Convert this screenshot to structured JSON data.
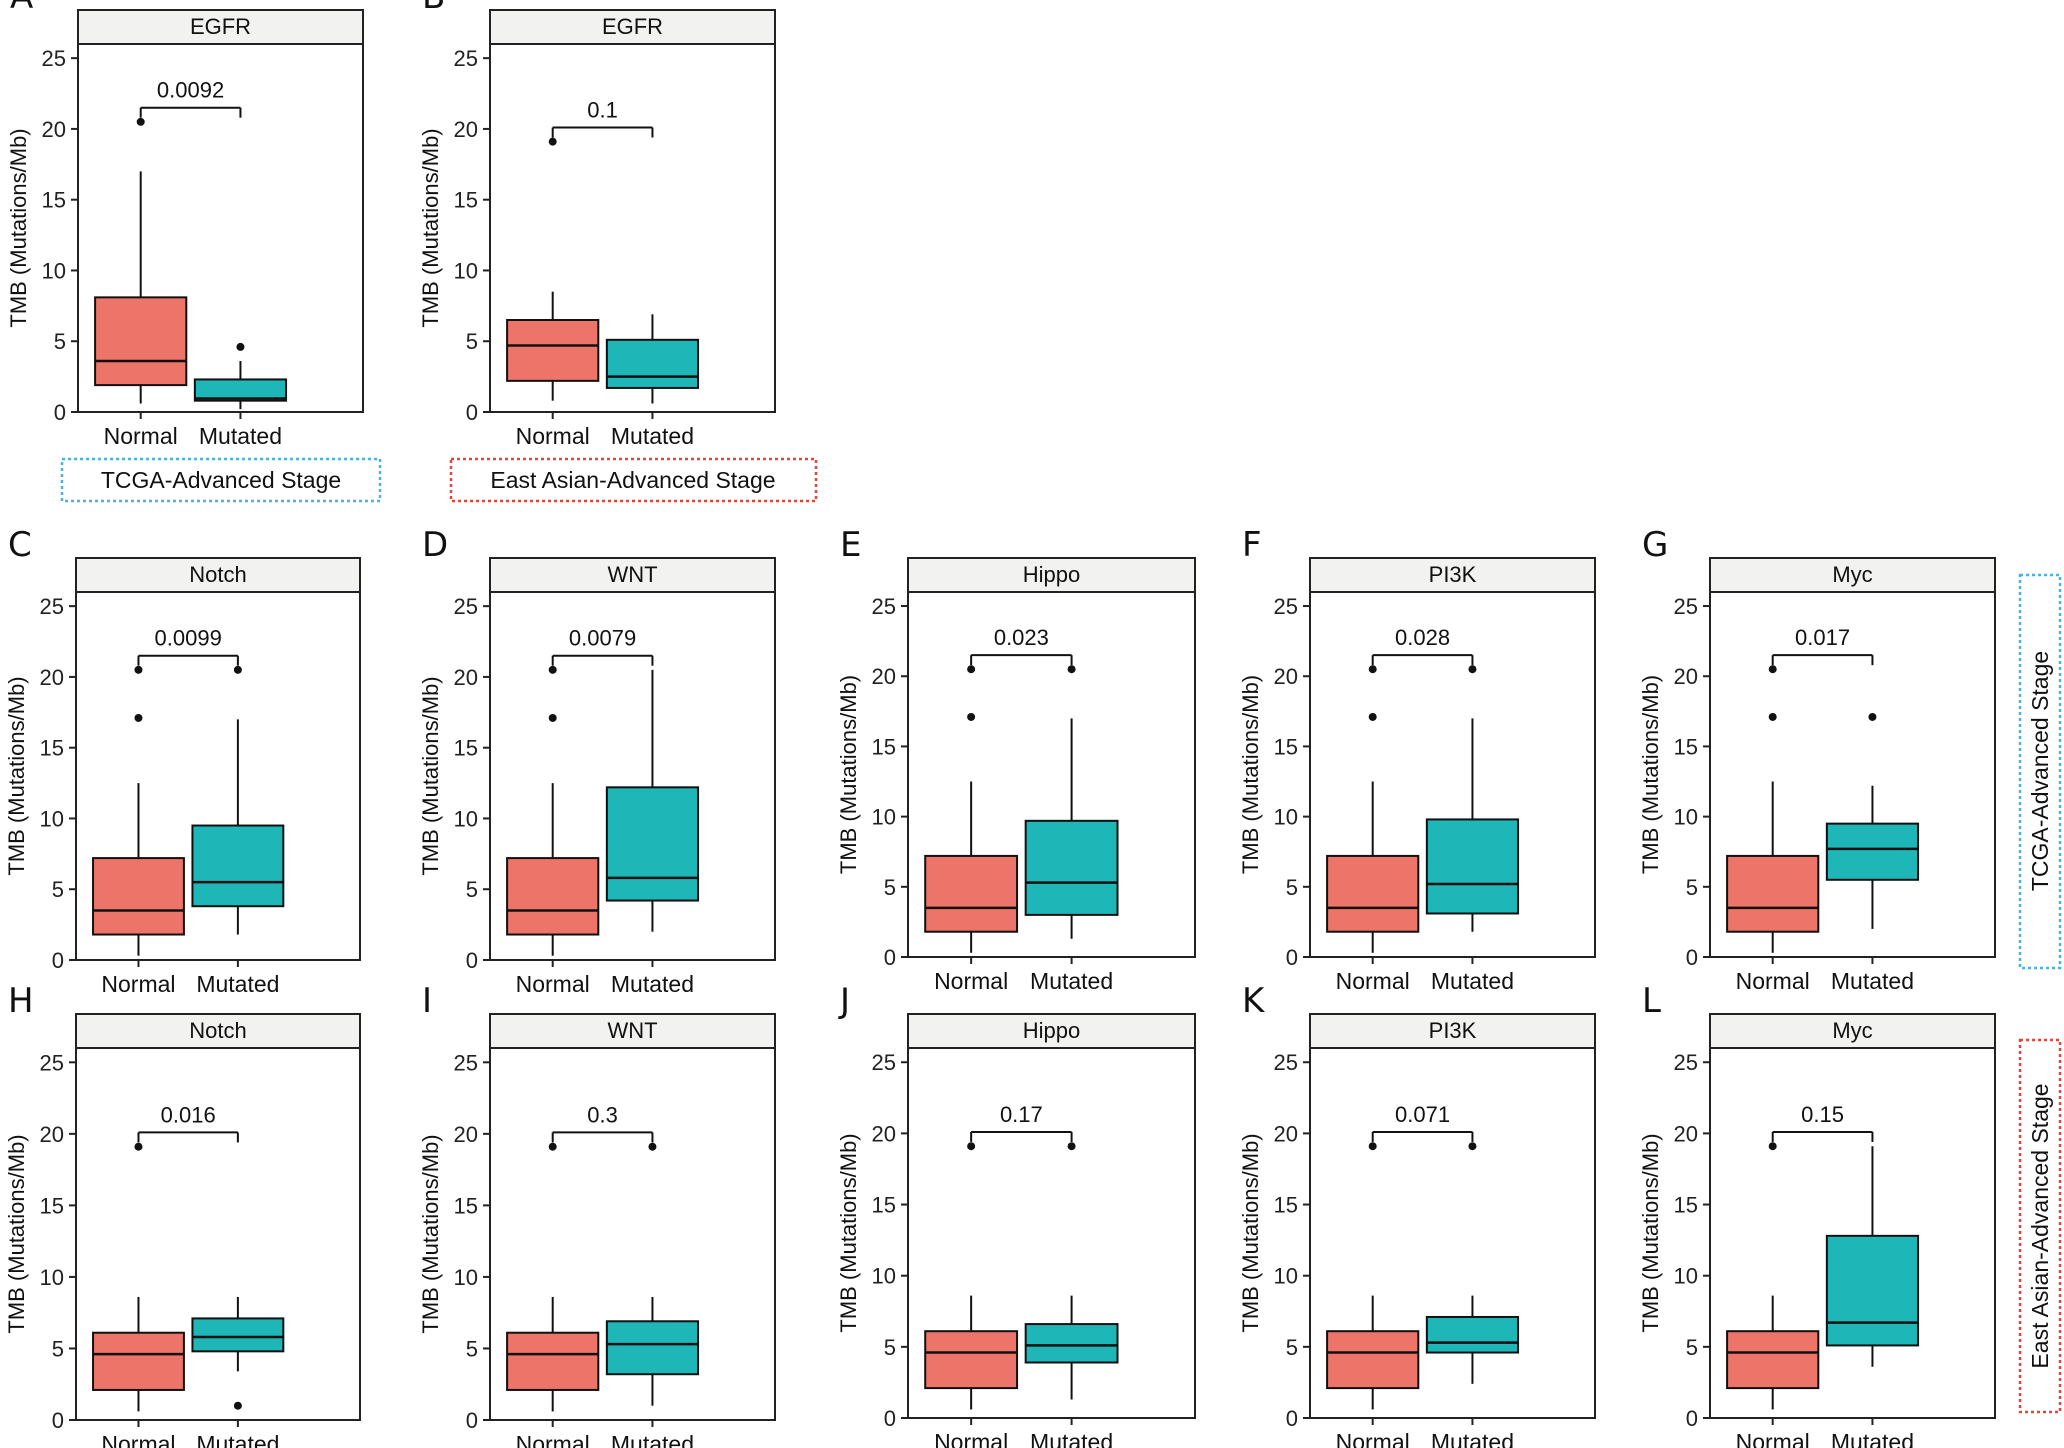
{
  "colors": {
    "normal": "#EC7468",
    "mutated": "#1FB6B8",
    "tcga_frame": "#4AB2E0",
    "eastasian_frame": "#E0453E",
    "strip_bg": "#F2F2F0"
  },
  "group_labels": {
    "tcga_bottom": "TCGA-Advanced Stage",
    "eastasian_bottom": "East Asian-Advanced Stage",
    "tcga_side": "TCGA-Advanced Stage",
    "eastasian_side": "East Asian-Advanced Stage"
  },
  "chart_data": [
    {
      "panel": "A",
      "type": "box",
      "strip": "EGFR",
      "ylabel": "TMB (Mutations/Mb)",
      "ylim": [
        0,
        26
      ],
      "yticks": [
        0,
        5,
        10,
        15,
        20,
        25
      ],
      "categories": [
        "Normal",
        "Mutated"
      ],
      "pvalue": "0.0092",
      "boxes": [
        {
          "name": "Normal",
          "min": 0.6,
          "q1": 1.9,
          "median": 3.6,
          "q3": 8.1,
          "max": 17.0,
          "outliers": [
            20.5
          ]
        },
        {
          "name": "Mutated",
          "min": 0.2,
          "q1": 0.8,
          "median": 0.95,
          "q3": 2.3,
          "max": 3.6,
          "outliers": [
            4.6
          ]
        }
      ]
    },
    {
      "panel": "B",
      "type": "box",
      "strip": "EGFR",
      "ylabel": "TMB (Mutations/Mb)",
      "ylim": [
        0,
        26
      ],
      "yticks": [
        0,
        5,
        10,
        15,
        20,
        25
      ],
      "categories": [
        "Normal",
        "Mutated"
      ],
      "pvalue": "0.1",
      "boxes": [
        {
          "name": "Normal",
          "min": 0.8,
          "q1": 2.2,
          "median": 4.7,
          "q3": 6.5,
          "max": 8.5,
          "outliers": [
            19.1
          ]
        },
        {
          "name": "Mutated",
          "min": 0.6,
          "q1": 1.7,
          "median": 2.5,
          "q3": 5.1,
          "max": 6.9,
          "outliers": []
        }
      ]
    },
    {
      "panel": "C",
      "type": "box",
      "strip": "Notch",
      "ylabel": "TMB (Mutations/Mb)",
      "ylim": [
        0,
        26
      ],
      "yticks": [
        0,
        5,
        10,
        15,
        20,
        25
      ],
      "categories": [
        "Normal",
        "Mutated"
      ],
      "pvalue": "0.0099",
      "boxes": [
        {
          "name": "Normal",
          "min": 0.3,
          "q1": 1.8,
          "median": 3.5,
          "q3": 7.2,
          "max": 12.5,
          "outliers": [
            17.1,
            20.5
          ]
        },
        {
          "name": "Mutated",
          "min": 1.8,
          "q1": 3.8,
          "median": 5.5,
          "q3": 9.5,
          "max": 17.0,
          "outliers": [
            20.5
          ]
        }
      ]
    },
    {
      "panel": "D",
      "type": "box",
      "strip": "WNT",
      "ylabel": "TMB (Mutations/Mb)",
      "ylim": [
        0,
        26
      ],
      "yticks": [
        0,
        5,
        10,
        15,
        20,
        25
      ],
      "categories": [
        "Normal",
        "Mutated"
      ],
      "pvalue": "0.0079",
      "boxes": [
        {
          "name": "Normal",
          "min": 0.3,
          "q1": 1.8,
          "median": 3.5,
          "q3": 7.2,
          "max": 12.5,
          "outliers": [
            17.1,
            20.5
          ]
        },
        {
          "name": "Mutated",
          "min": 2.0,
          "q1": 4.2,
          "median": 5.8,
          "q3": 12.2,
          "max": 20.5,
          "outliers": []
        }
      ]
    },
    {
      "panel": "E",
      "type": "box",
      "strip": "Hippo",
      "ylabel": "TMB (Mutations/Mb)",
      "ylim": [
        0,
        26
      ],
      "yticks": [
        0,
        5,
        10,
        15,
        20,
        25
      ],
      "categories": [
        "Normal",
        "Mutated"
      ],
      "pvalue": "0.023",
      "boxes": [
        {
          "name": "Normal",
          "min": 0.3,
          "q1": 1.8,
          "median": 3.5,
          "q3": 7.2,
          "max": 12.5,
          "outliers": [
            17.1,
            20.5
          ]
        },
        {
          "name": "Mutated",
          "min": 1.3,
          "q1": 3.0,
          "median": 5.3,
          "q3": 9.7,
          "max": 17.0,
          "outliers": [
            20.5
          ]
        }
      ]
    },
    {
      "panel": "F",
      "type": "box",
      "strip": "PI3K",
      "ylabel": "TMB (Mutations/Mb)",
      "ylim": [
        0,
        26
      ],
      "yticks": [
        0,
        5,
        10,
        15,
        20,
        25
      ],
      "categories": [
        "Normal",
        "Mutated"
      ],
      "pvalue": "0.028",
      "boxes": [
        {
          "name": "Normal",
          "min": 0.3,
          "q1": 1.8,
          "median": 3.5,
          "q3": 7.2,
          "max": 12.5,
          "outliers": [
            17.1,
            20.5
          ]
        },
        {
          "name": "Mutated",
          "min": 1.8,
          "q1": 3.1,
          "median": 5.2,
          "q3": 9.8,
          "max": 17.0,
          "outliers": [
            20.5
          ]
        }
      ]
    },
    {
      "panel": "G",
      "type": "box",
      "strip": "Myc",
      "ylabel": "TMB (Mutations/Mb)",
      "ylim": [
        0,
        26
      ],
      "yticks": [
        0,
        5,
        10,
        15,
        20,
        25
      ],
      "categories": [
        "Normal",
        "Mutated"
      ],
      "pvalue": "0.017",
      "boxes": [
        {
          "name": "Normal",
          "min": 0.3,
          "q1": 1.8,
          "median": 3.5,
          "q3": 7.2,
          "max": 12.5,
          "outliers": [
            17.1,
            20.5
          ]
        },
        {
          "name": "Mutated",
          "min": 2.0,
          "q1": 5.5,
          "median": 7.7,
          "q3": 9.5,
          "max": 12.2,
          "outliers": [
            17.1
          ]
        }
      ]
    },
    {
      "panel": "H",
      "type": "box",
      "strip": "Notch",
      "ylabel": "TMB (Mutations/Mb)",
      "ylim": [
        0,
        26
      ],
      "yticks": [
        0,
        5,
        10,
        15,
        20,
        25
      ],
      "categories": [
        "Normal",
        "Mutated"
      ],
      "pvalue": "0.016",
      "boxes": [
        {
          "name": "Normal",
          "min": 0.6,
          "q1": 2.1,
          "median": 4.6,
          "q3": 6.1,
          "max": 8.6,
          "outliers": [
            19.1
          ]
        },
        {
          "name": "Mutated",
          "min": 3.4,
          "q1": 4.8,
          "median": 5.8,
          "q3": 7.1,
          "max": 8.6,
          "outliers": [
            1.0
          ]
        }
      ]
    },
    {
      "panel": "I",
      "type": "box",
      "strip": "WNT",
      "ylabel": "TMB (Mutations/Mb)",
      "ylim": [
        0,
        26
      ],
      "yticks": [
        0,
        5,
        10,
        15,
        20,
        25
      ],
      "categories": [
        "Normal",
        "Mutated"
      ],
      "pvalue": "0.3",
      "boxes": [
        {
          "name": "Normal",
          "min": 0.6,
          "q1": 2.1,
          "median": 4.6,
          "q3": 6.1,
          "max": 8.6,
          "outliers": [
            19.1
          ]
        },
        {
          "name": "Mutated",
          "min": 1.0,
          "q1": 3.2,
          "median": 5.3,
          "q3": 6.9,
          "max": 8.6,
          "outliers": [
            19.1
          ]
        }
      ]
    },
    {
      "panel": "J",
      "type": "box",
      "strip": "Hippo",
      "ylabel": "TMB (Mutations/Mb)",
      "ylim": [
        0,
        26
      ],
      "yticks": [
        0,
        5,
        10,
        15,
        20,
        25
      ],
      "categories": [
        "Normal",
        "Mutated"
      ],
      "pvalue": "0.17",
      "boxes": [
        {
          "name": "Normal",
          "min": 0.6,
          "q1": 2.1,
          "median": 4.6,
          "q3": 6.1,
          "max": 8.6,
          "outliers": [
            19.1
          ]
        },
        {
          "name": "Mutated",
          "min": 1.3,
          "q1": 3.9,
          "median": 5.1,
          "q3": 6.6,
          "max": 8.6,
          "outliers": [
            19.1
          ]
        }
      ]
    },
    {
      "panel": "K",
      "type": "box",
      "strip": "PI3K",
      "ylabel": "TMB (Mutations/Mb)",
      "ylim": [
        0,
        26
      ],
      "yticks": [
        0,
        5,
        10,
        15,
        20,
        25
      ],
      "categories": [
        "Normal",
        "Mutated"
      ],
      "pvalue": "0.071",
      "boxes": [
        {
          "name": "Normal",
          "min": 0.6,
          "q1": 2.1,
          "median": 4.6,
          "q3": 6.1,
          "max": 8.6,
          "outliers": [
            19.1
          ]
        },
        {
          "name": "Mutated",
          "min": 2.4,
          "q1": 4.6,
          "median": 5.3,
          "q3": 7.1,
          "max": 8.6,
          "outliers": [
            19.1
          ]
        }
      ]
    },
    {
      "panel": "L",
      "type": "box",
      "strip": "Myc",
      "ylabel": "TMB (Mutations/Mb)",
      "ylim": [
        0,
        26
      ],
      "yticks": [
        0,
        5,
        10,
        15,
        20,
        25
      ],
      "categories": [
        "Normal",
        "Mutated"
      ],
      "pvalue": "0.15",
      "boxes": [
        {
          "name": "Normal",
          "min": 0.6,
          "q1": 2.1,
          "median": 4.6,
          "q3": 6.1,
          "max": 8.6,
          "outliers": [
            19.1
          ]
        },
        {
          "name": "Mutated",
          "min": 3.6,
          "q1": 5.1,
          "median": 6.7,
          "q3": 12.8,
          "max": 19.1,
          "outliers": []
        }
      ]
    }
  ]
}
